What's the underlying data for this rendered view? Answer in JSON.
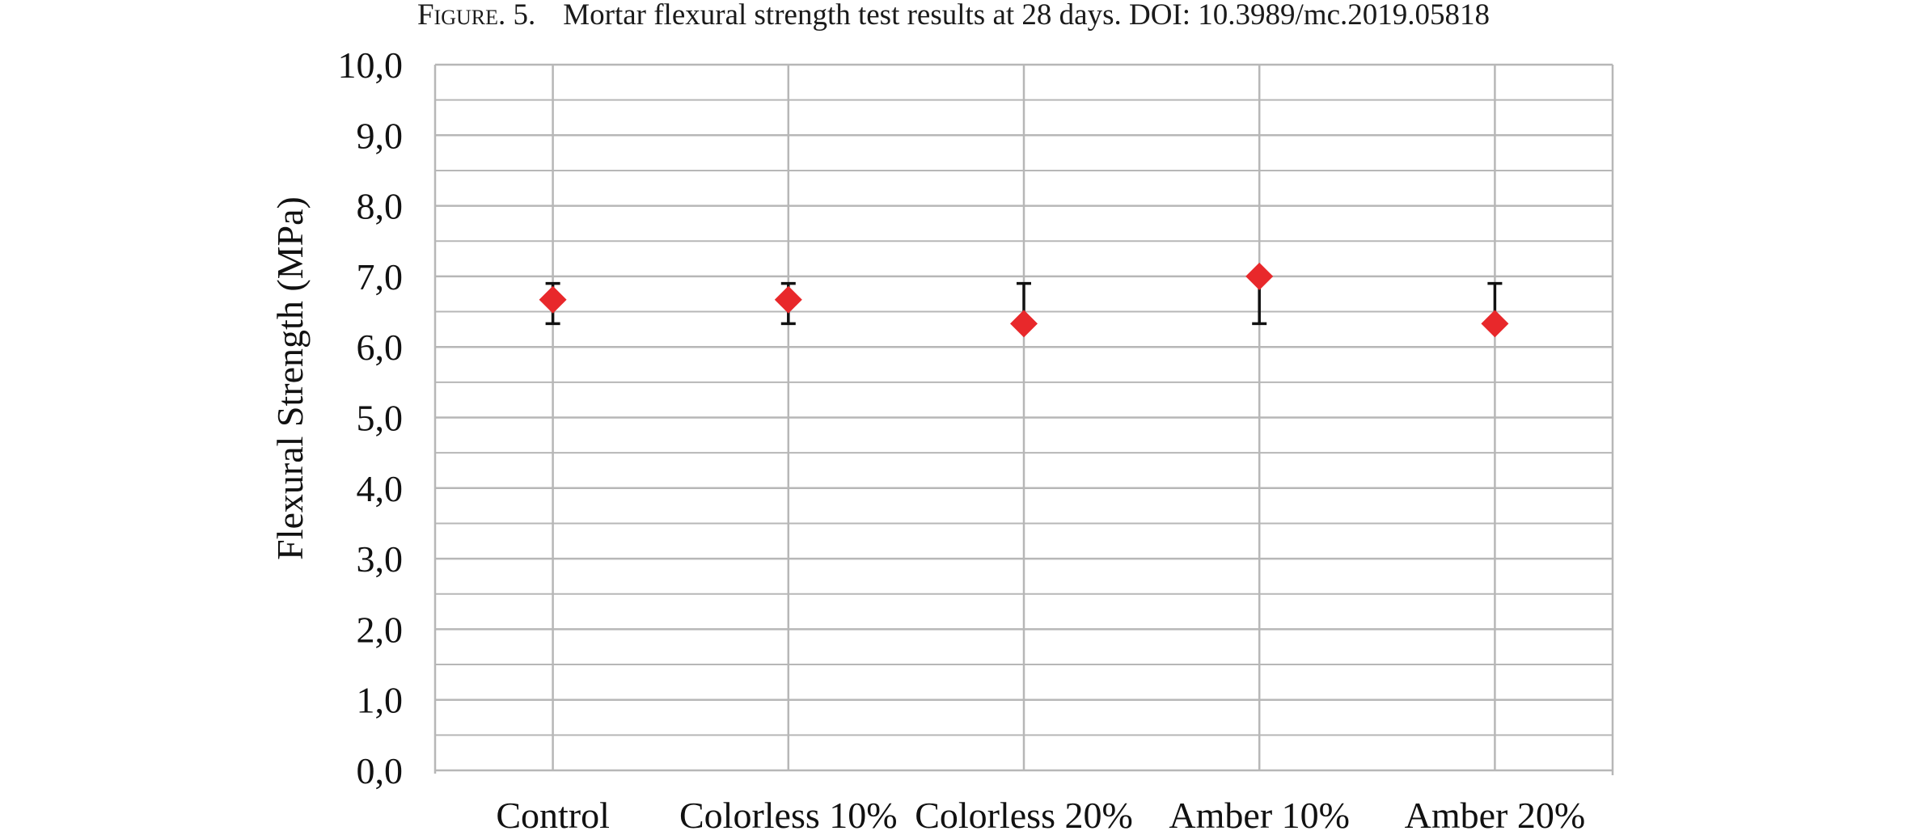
{
  "caption": {
    "label": "Figure. 5.",
    "text": "Mortar flexural strength test results at 28 days. DOI: 10.3989/mc.2019.05818"
  },
  "chart_data": {
    "type": "scatter",
    "categories": [
      "Control",
      "Colorless 10%",
      "Colorless 20%",
      "Amber 10%",
      "Amber 20%"
    ],
    "series": [
      {
        "values": [
          6.67,
          6.67,
          6.33,
          7.0,
          6.33
        ],
        "error_low": [
          6.33,
          6.33,
          6.33,
          6.33,
          6.33
        ],
        "error_high": [
          6.9,
          6.9,
          6.9,
          7.0,
          6.9
        ],
        "marker": "diamond",
        "color": "#e8282b"
      }
    ],
    "ylabel": "Flexural Strength (MPa)",
    "xlabel": "",
    "ylim": [
      0,
      10
    ],
    "ytick_step": 1,
    "yticks": [
      "0,0",
      "1,0",
      "2,0",
      "3,0",
      "4,0",
      "5,0",
      "6,0",
      "7,0",
      "8,0",
      "9,0",
      "10,0"
    ],
    "grid": {
      "horizontal_major": true,
      "horizontal_minor": true,
      "vertical": true,
      "color": "#b7b7b7"
    },
    "errorbar_color": "#111111"
  }
}
